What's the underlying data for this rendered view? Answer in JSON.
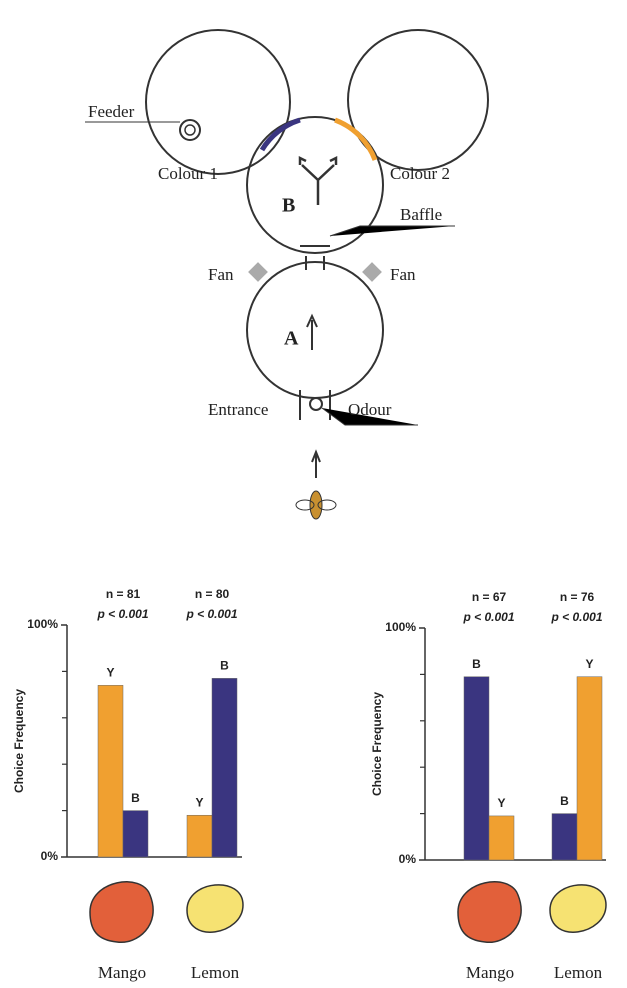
{
  "diagram": {
    "labels": {
      "feeder": "Feeder",
      "colour1": "Colour 1",
      "colour2": "Colour 2",
      "chamber_b": "B",
      "baffle": "Baffle",
      "fan_left": "Fan",
      "fan_right": "Fan",
      "chamber_a": "A",
      "entrance": "Entrance",
      "odour": "Odour"
    }
  },
  "chart_data": [
    {
      "type": "bar",
      "ylabel": "Choice Frequency",
      "categories": [
        "Mango",
        "Lemon"
      ],
      "series": [
        {
          "name": "Y",
          "color": "#f0a030",
          "values": [
            74,
            18
          ]
        },
        {
          "name": "B",
          "color": "#3a3580",
          "values": [
            20,
            77
          ]
        }
      ],
      "stats": [
        {
          "n": "n = 81",
          "p": "p < 0.001"
        },
        {
          "n": "n = 80",
          "p": "p < 0.001"
        }
      ],
      "ylim": [
        0,
        100
      ],
      "yticks": [
        {
          "value": 0,
          "label": "0%"
        },
        {
          "value": 100,
          "label": "100%"
        }
      ],
      "minor_yticks": [
        20,
        40,
        60,
        80
      ]
    },
    {
      "type": "bar",
      "ylabel": "Choice Frequency",
      "categories": [
        "Mango",
        "Lemon"
      ],
      "series": [
        {
          "name": "B",
          "color": "#3a3580",
          "values": [
            79,
            20
          ]
        },
        {
          "name": "Y",
          "color": "#f0a030",
          "values": [
            19,
            79
          ]
        }
      ],
      "stats": [
        {
          "n": "n = 67",
          "p": "p < 0.001"
        },
        {
          "n": "n = 76",
          "p": "p < 0.001"
        }
      ],
      "ylim": [
        0,
        100
      ],
      "yticks": [
        {
          "value": 0,
          "label": "0%"
        },
        {
          "value": 100,
          "label": "100%"
        }
      ],
      "minor_yticks": [
        20,
        40,
        60,
        80
      ]
    }
  ]
}
